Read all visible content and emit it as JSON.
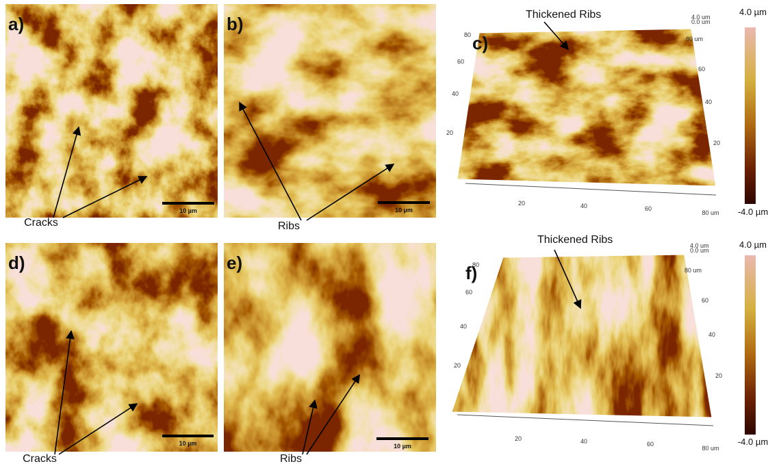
{
  "panels": [
    {
      "label": "a)",
      "scale_bar": "10 µm",
      "annotation": "Cracks"
    },
    {
      "label": "b)",
      "scale_bar": "10 µm",
      "annotation": "Ribs"
    },
    {
      "label": "c)",
      "annotation": "Thickened Ribs",
      "z_labels": [
        "4.0 um",
        "0.0 um"
      ],
      "x_ticks": [
        "20",
        "40",
        "60",
        "80 um"
      ],
      "y_ticks": [
        "80",
        "60",
        "40",
        "20"
      ],
      "right_ticks": [
        "80 um",
        "60",
        "40",
        "20"
      ],
      "colorbar": {
        "max": "4.0 µm",
        "min": "-4.0 µm"
      }
    },
    {
      "label": "d)",
      "scale_bar": "10 µm",
      "annotation": "Cracks"
    },
    {
      "label": "e)",
      "scale_bar": "10 µm",
      "annotation": "Ribs"
    },
    {
      "label": "f)",
      "annotation": "Thickened Ribs",
      "z_labels": [
        "4.0 um",
        "0.0 um"
      ],
      "x_ticks": [
        "20",
        "40",
        "60",
        "80 um"
      ],
      "y_ticks": [
        "80",
        "60",
        "40",
        "20"
      ],
      "right_ticks": [
        "80 um",
        "60",
        "40",
        "20"
      ],
      "colorbar": {
        "max": "4.0 µm",
        "min": "-4.0 µm"
      }
    }
  ]
}
